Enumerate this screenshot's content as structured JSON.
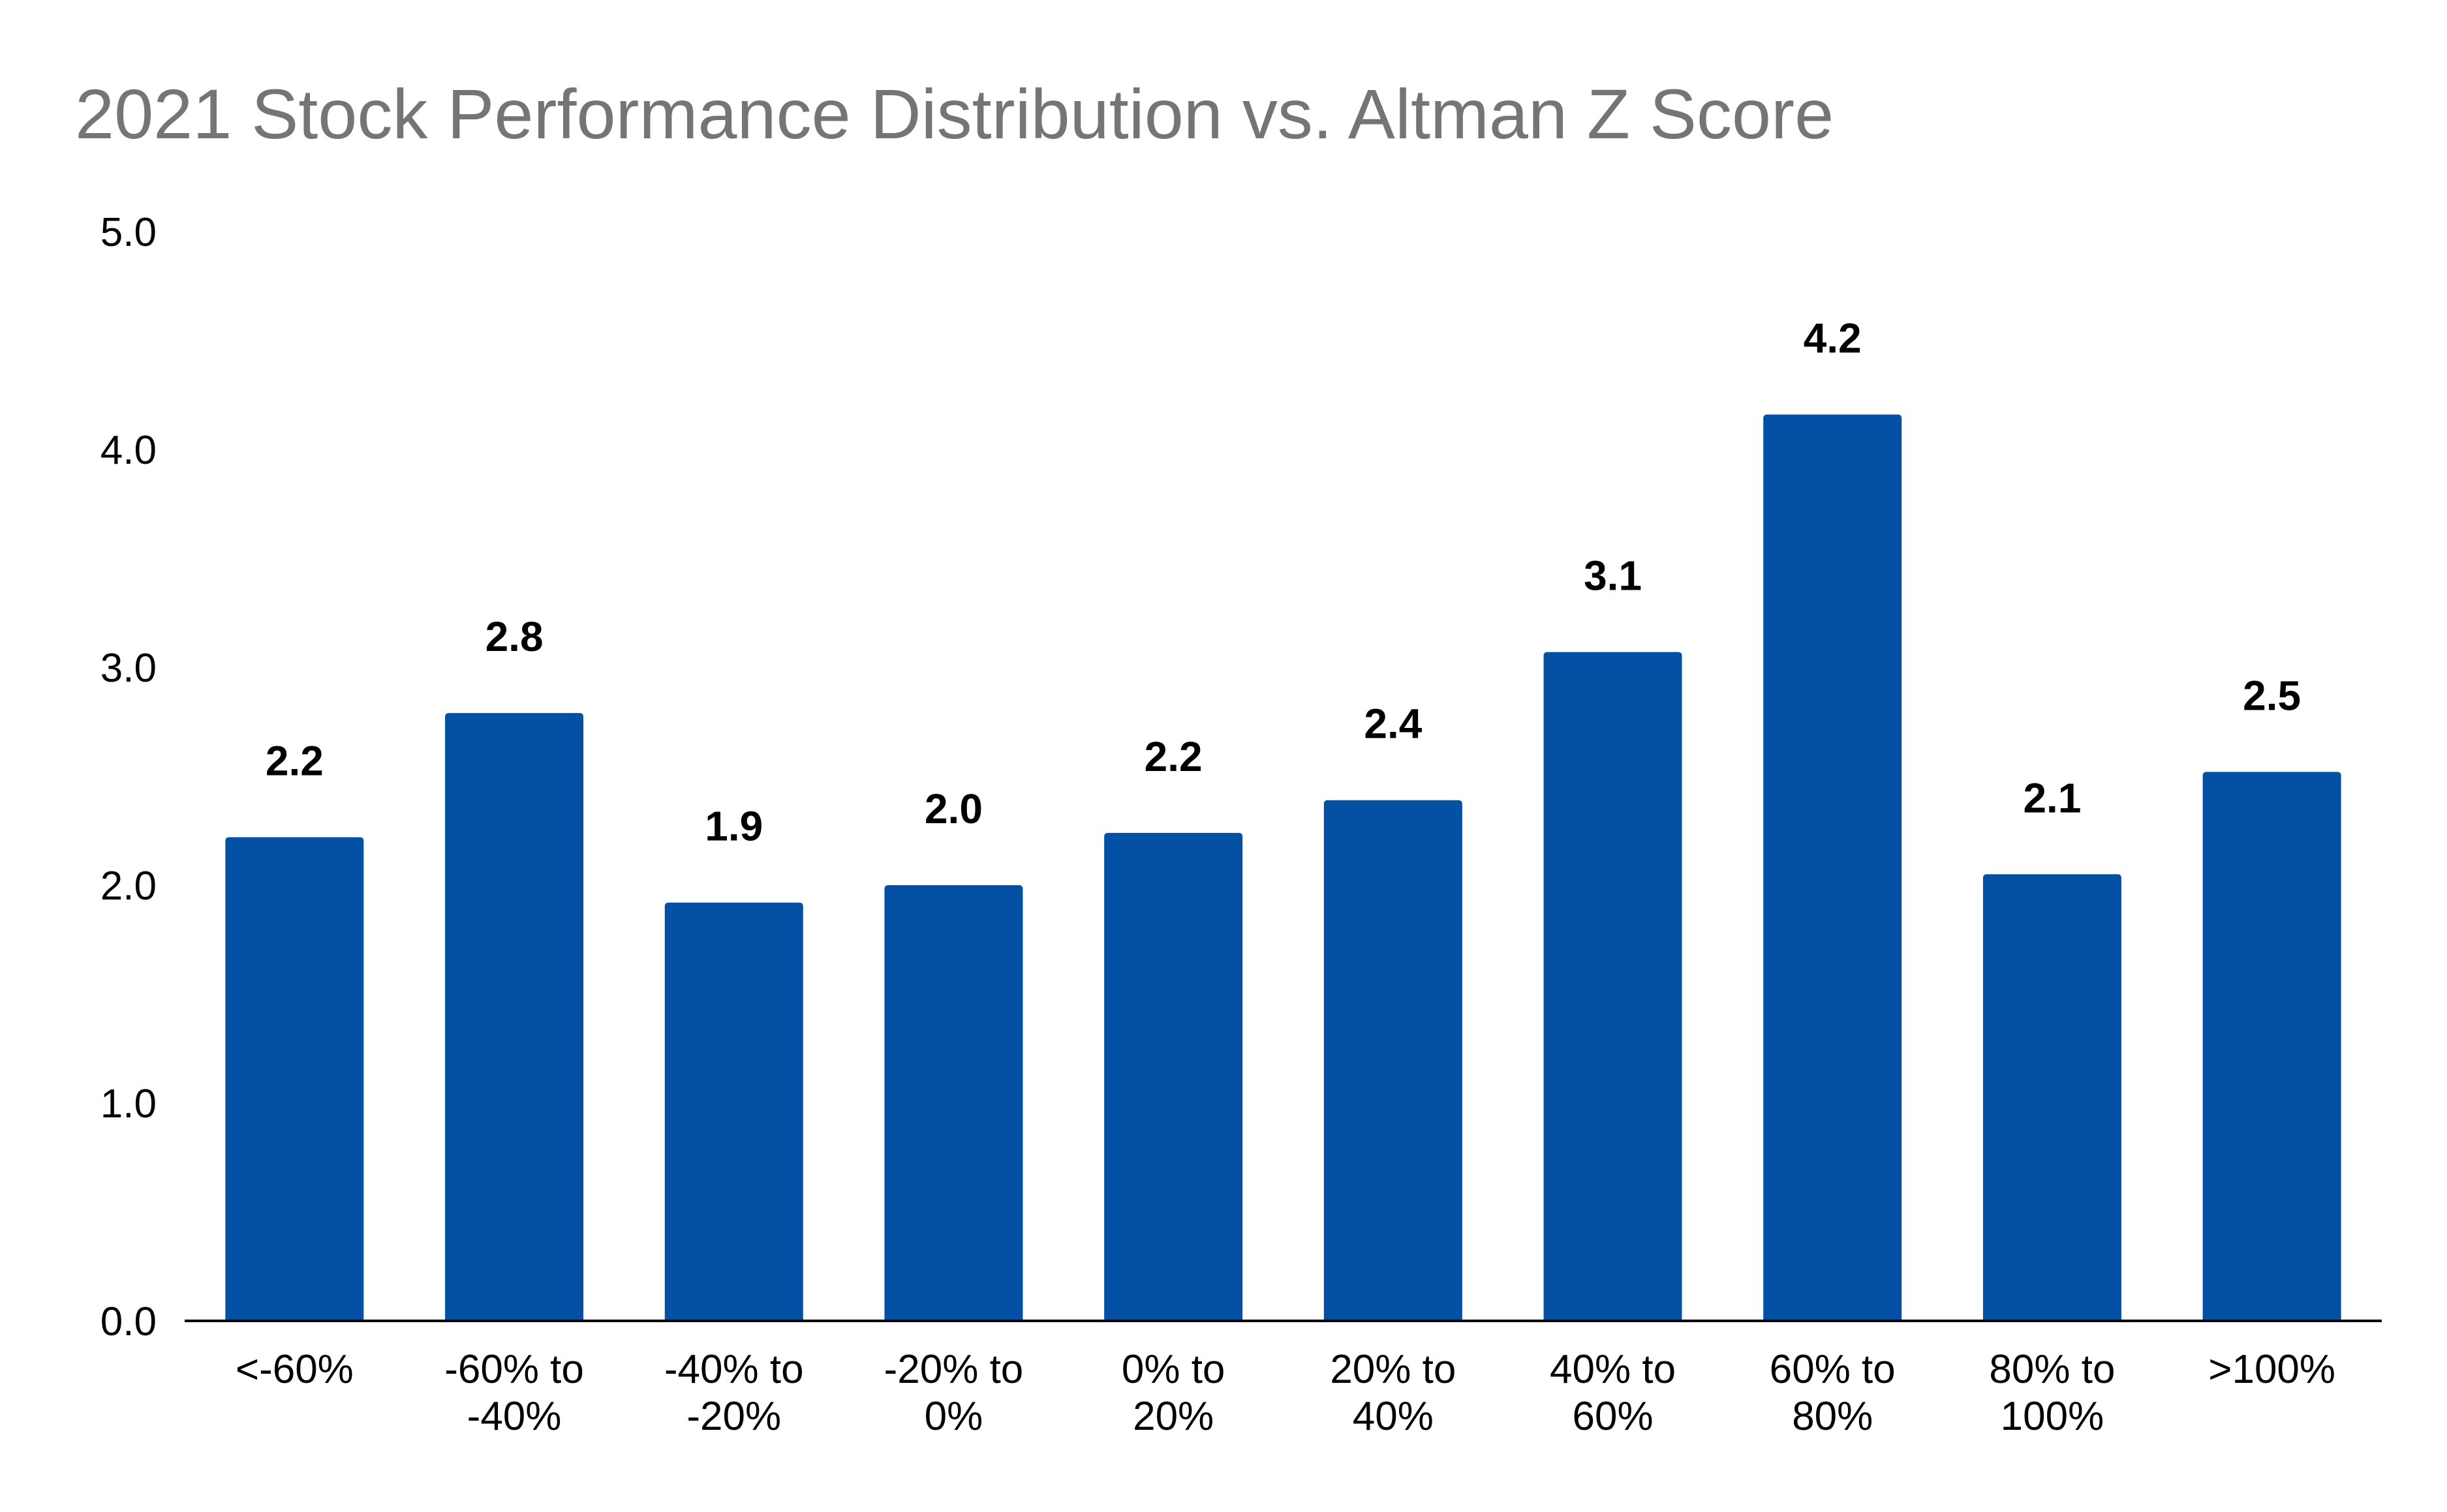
{
  "colors": {
    "bar": "#0450A5",
    "title": "#757575",
    "axis": "#000000",
    "text": "#000000"
  },
  "chart_data": {
    "type": "bar",
    "title": "2021 Stock Performance Distribution vs. Altman Z Score",
    "xlabel": "",
    "ylabel": "",
    "ylim": [
      0,
      5
    ],
    "yticks": [
      "0.0",
      "1.0",
      "2.0",
      "3.0",
      "4.0",
      "5.0"
    ],
    "grid": false,
    "legend": "none",
    "categories": [
      [
        "<-60%"
      ],
      [
        "-60% to",
        "-40%"
      ],
      [
        "-40% to",
        "-20%"
      ],
      [
        "-20% to",
        "0%"
      ],
      [
        "0% to",
        "20%"
      ],
      [
        "20% to",
        "40%"
      ],
      [
        "40% to",
        "60%"
      ],
      [
        "60% to",
        "80%"
      ],
      [
        "80% to",
        "100%"
      ],
      [
        ">100%"
      ]
    ],
    "values": [
      2.22,
      2.79,
      1.92,
      2.0,
      2.24,
      2.39,
      3.07,
      4.16,
      2.05,
      2.52
    ],
    "data_labels": [
      "2.2",
      "2.8",
      "1.9",
      "2.0",
      "2.2",
      "2.4",
      "3.1",
      "4.2",
      "2.1",
      "2.5"
    ]
  }
}
